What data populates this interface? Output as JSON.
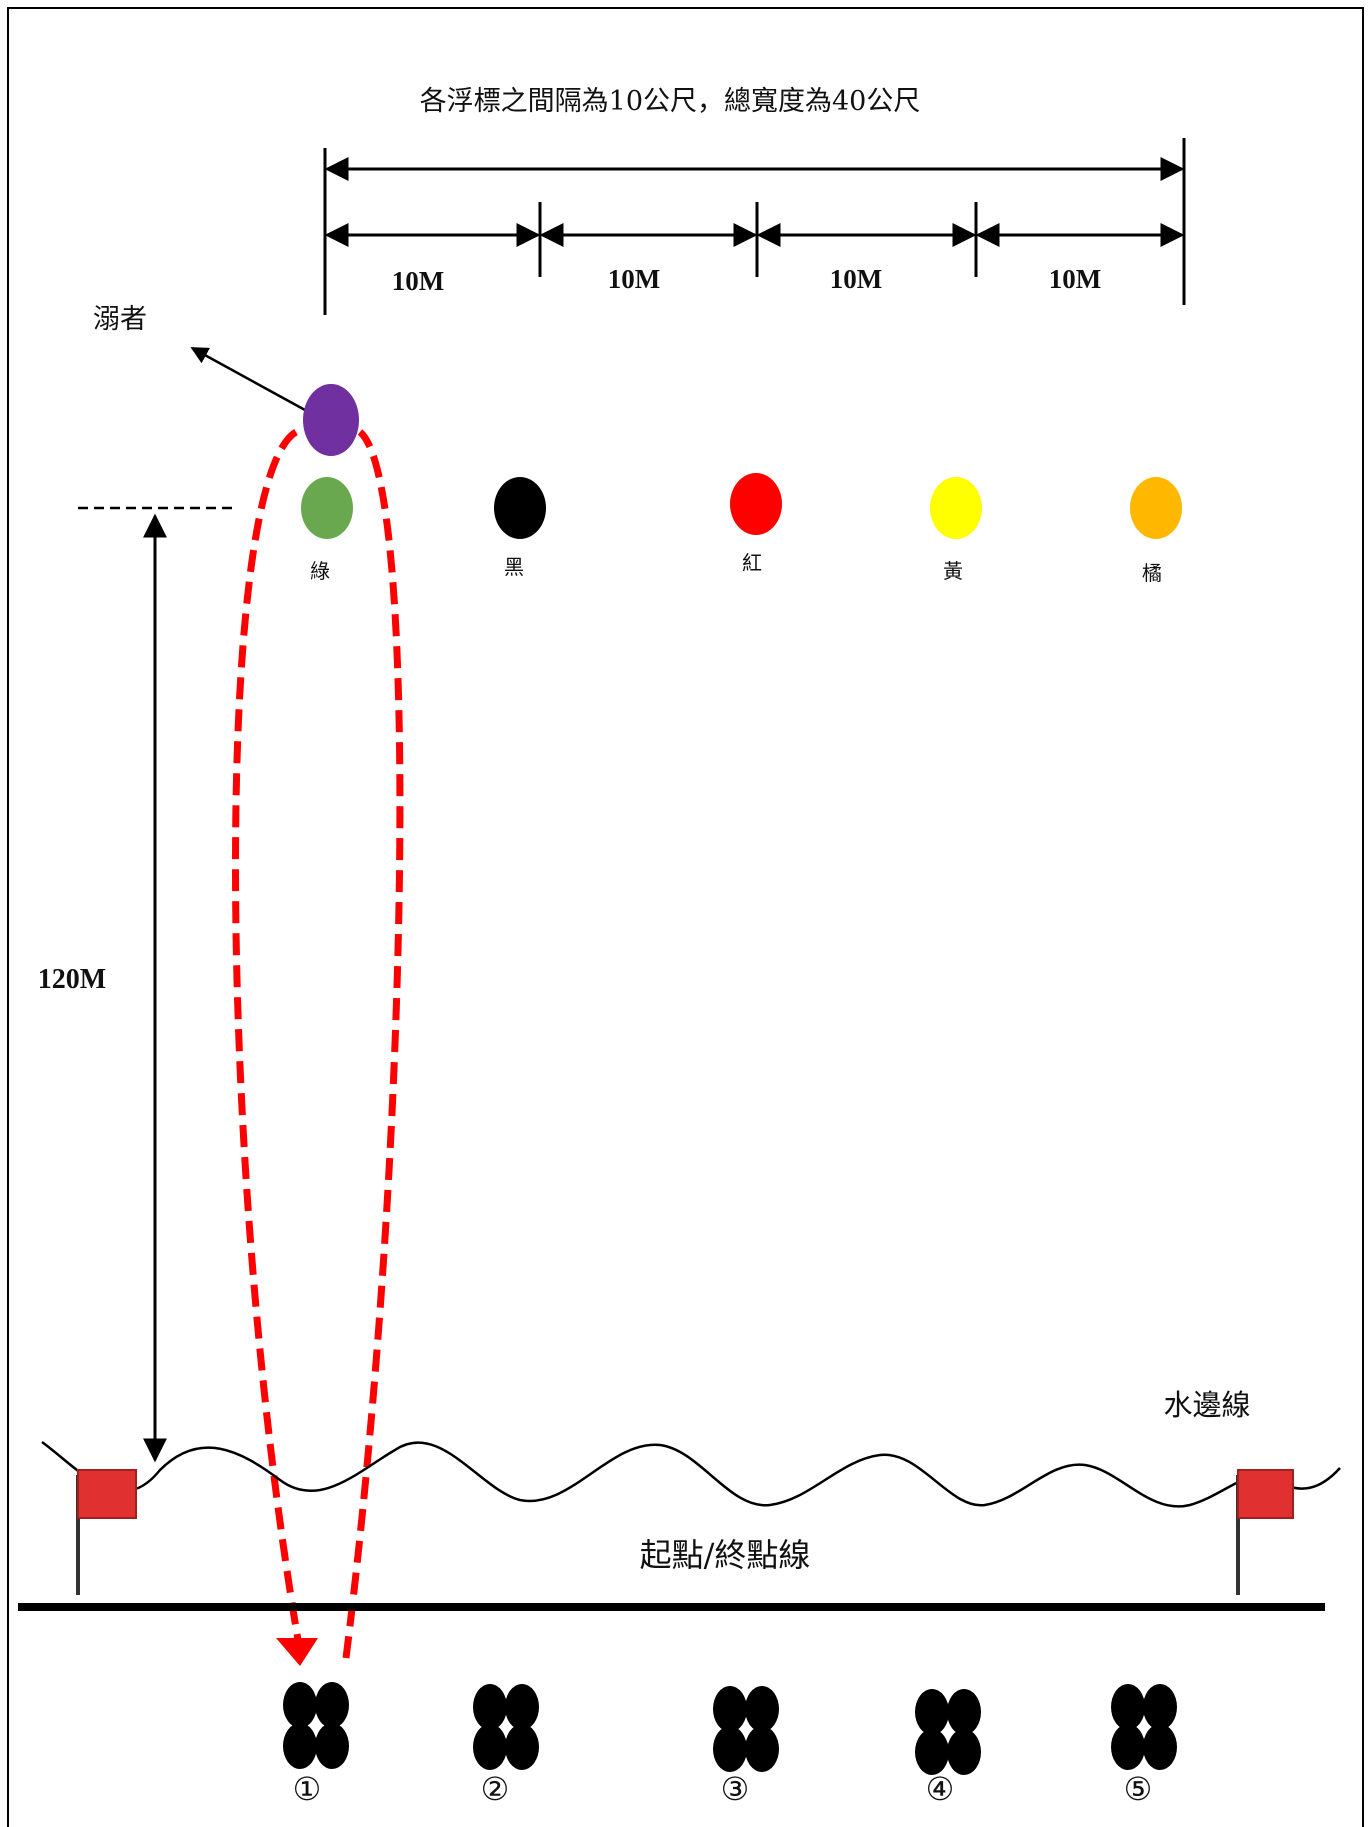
{
  "diagram": {
    "header_text": "各浮標之間隔為10公尺，總寬度為40公尺",
    "segments": [
      "10M",
      "10M",
      "10M",
      "10M"
    ],
    "drowning_label": "溺者",
    "distance_label": "120M",
    "waterline_label": "水邊線",
    "start_finish_label": "起點/終點線",
    "buoys": [
      {
        "label": "綠",
        "color": "#6aa84f"
      },
      {
        "label": "黑",
        "color": "#000000"
      },
      {
        "label": "紅",
        "color": "#ff0000"
      },
      {
        "label": "黃",
        "color": "#ffff00"
      },
      {
        "label": "橘",
        "color": "#ffb700"
      }
    ],
    "swimmer_color": "#7030a0",
    "path_color": "#ff0000",
    "flag_color": "#e03030",
    "groups": [
      "①",
      "②",
      "③",
      "④",
      "⑤"
    ]
  }
}
